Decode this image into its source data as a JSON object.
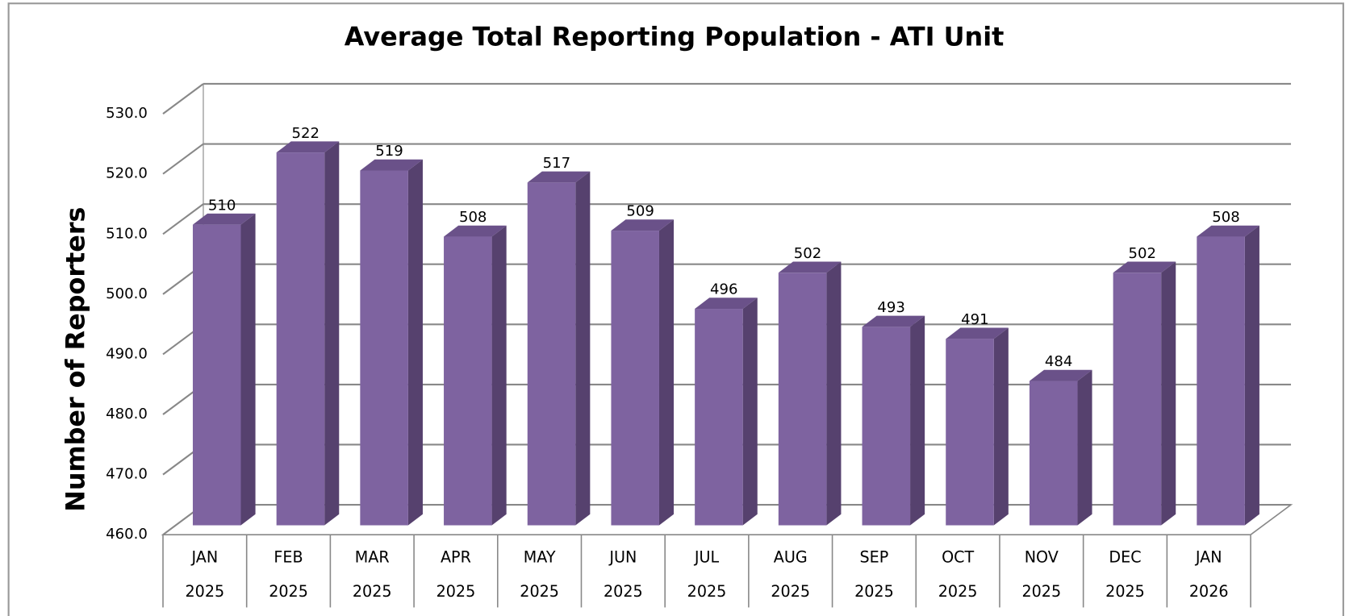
{
  "chart_data": {
    "type": "bar3d",
    "title": "Average Total Reporting Population - ATI Unit",
    "y_label": "Number of Reporters",
    "categories": [
      [
        "JAN",
        "2025"
      ],
      [
        "FEB",
        "2025"
      ],
      [
        "MAR",
        "2025"
      ],
      [
        "APR",
        "2025"
      ],
      [
        "MAY",
        "2025"
      ],
      [
        "JUN",
        "2025"
      ],
      [
        "JUL",
        "2025"
      ],
      [
        "AUG",
        "2025"
      ],
      [
        "SEP",
        "2025"
      ],
      [
        "OCT",
        "2025"
      ],
      [
        "NOV",
        "2025"
      ],
      [
        "DEC",
        "2025"
      ],
      [
        "JAN",
        "2026"
      ]
    ],
    "values": [
      510,
      522,
      519,
      508,
      517,
      509,
      496,
      502,
      493,
      491,
      484,
      502,
      508
    ],
    "color": "#7e63a0",
    "ylim": [
      460,
      530
    ],
    "yticks": [
      {
        "value": 460,
        "label": "460.0"
      },
      {
        "value": 470,
        "label": "470.0"
      },
      {
        "value": 480,
        "label": "480.0"
      },
      {
        "value": 490,
        "label": "490.0"
      },
      {
        "value": 500,
        "label": "500.0"
      },
      {
        "value": 510,
        "label": "510.0"
      },
      {
        "value": 520,
        "label": "520.0"
      },
      {
        "value": 530,
        "label": "530.0"
      }
    ],
    "grid": true
  }
}
